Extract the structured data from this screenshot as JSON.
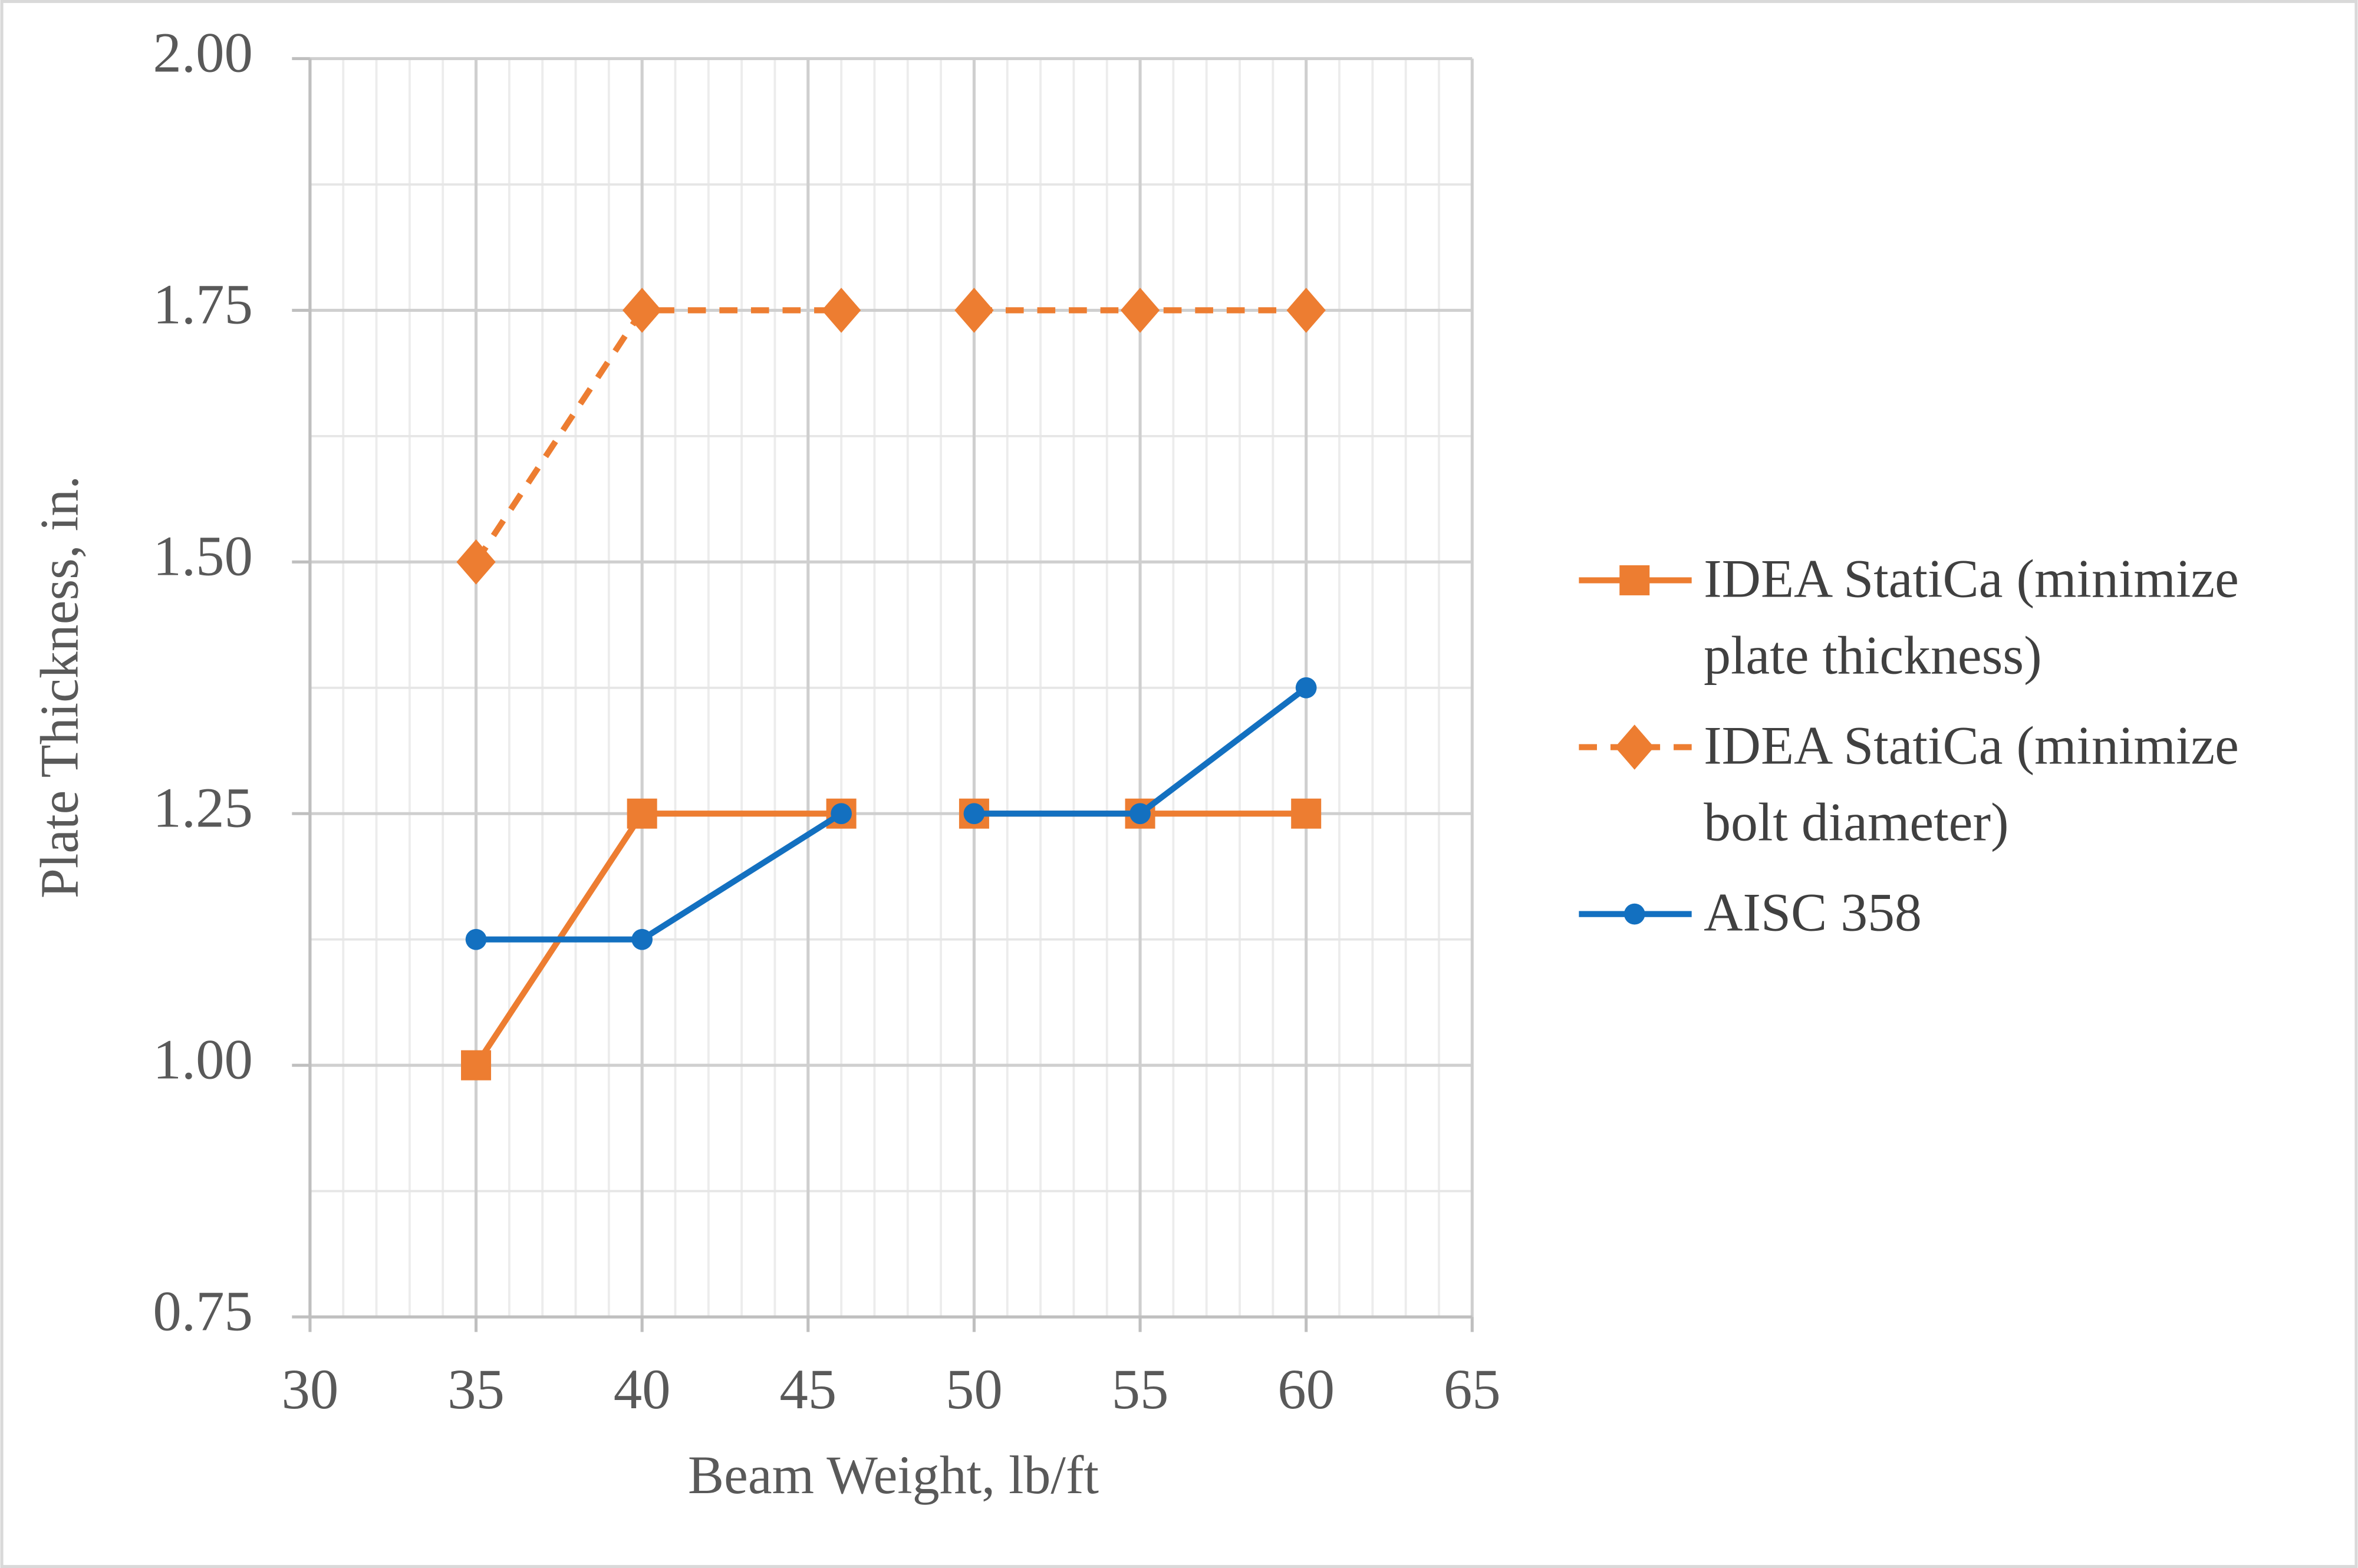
{
  "chart_data": {
    "type": "line",
    "x_label": "Beam Weight, lb/ft",
    "y_label": "Plate Thickness, in.",
    "x": [
      35,
      40,
      46,
      null,
      50,
      55,
      60
    ],
    "series": [
      {
        "name": "IDEA StatiCa (minimize plate thickness)",
        "color": "#ed7d31",
        "line_style": "solid",
        "marker": "square",
        "values": [
          1.0,
          1.25,
          1.25,
          null,
          1.25,
          1.25,
          1.25
        ]
      },
      {
        "name": "IDEA StatiCa (minimize bolt diameter)",
        "color": "#ed7d31",
        "line_style": "dashed",
        "marker": "diamond",
        "values": [
          1.5,
          1.75,
          1.75,
          null,
          1.75,
          1.75,
          1.75
        ]
      },
      {
        "name": "AISC 358",
        "color": "#1370c0",
        "line_style": "solid",
        "marker": "circle",
        "values": [
          1.125,
          1.125,
          1.25,
          null,
          1.25,
          1.25,
          1.375
        ]
      }
    ],
    "xlim": [
      30,
      65
    ],
    "xticks": [
      30,
      35,
      40,
      45,
      50,
      55,
      60,
      65
    ],
    "ylim": [
      0.75,
      2.0
    ],
    "yticks": [
      0.75,
      {
        "value": 1.0,
        "label": "1.00"
      },
      1.25,
      {
        "value": 1.5,
        "label": "1.50"
      },
      1.75,
      {
        "value": 2.0,
        "label": "2.00"
      }
    ],
    "grid": true,
    "x_minor_step": 1,
    "y_minor_step": 0.125,
    "legend": "right"
  }
}
